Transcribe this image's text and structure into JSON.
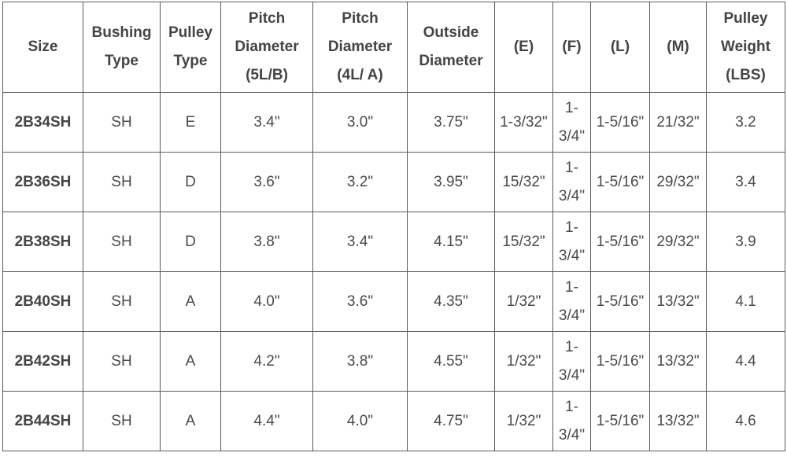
{
  "table": {
    "header": [
      "Size",
      "Bushing Type",
      "Pulley Type",
      "Pitch Diameter (5L/B)",
      "Pitch Diameter (4L/ A)",
      "Outside Diameter",
      "(E)",
      "(F)",
      "(L)",
      "(M)",
      "Pulley Weight (LBS)"
    ],
    "rows": [
      [
        "2B34SH",
        "SH",
        "E",
        "3.4\"",
        "3.0\"",
        "3.75\"",
        "1-3/32\"",
        "1-3/4\"",
        "1-5/16\"",
        "21/32\"",
        "3.2"
      ],
      [
        "2B36SH",
        "SH",
        "D",
        "3.6\"",
        "3.2\"",
        "3.95\"",
        "15/32\"",
        "1-3/4\"",
        "1-5/16\"",
        "29/32\"",
        "3.4"
      ],
      [
        "2B38SH",
        "SH",
        "D",
        "3.8\"",
        "3.4\"",
        "4.15\"",
        "15/32\"",
        "1-3/4\"",
        "1-5/16\"",
        "29/32\"",
        "3.9"
      ],
      [
        "2B40SH",
        "SH",
        "A",
        "4.0\"",
        "3.6\"",
        "4.35\"",
        "1/32\"",
        "1-3/4\"",
        "1-5/16\"",
        "13/32\"",
        "4.1"
      ],
      [
        "2B42SH",
        "SH",
        "A",
        "4.2\"",
        "3.8\"",
        "4.55\"",
        "1/32\"",
        "1-3/4\"",
        "1-5/16\"",
        "13/32\"",
        "4.4"
      ],
      [
        "2B44SH",
        "SH",
        "A",
        "4.4\"",
        "4.0\"",
        "4.75\"",
        "1/32\"",
        "1-3/4\"",
        "1-5/16\"",
        "13/32\"",
        "4.6"
      ]
    ]
  }
}
